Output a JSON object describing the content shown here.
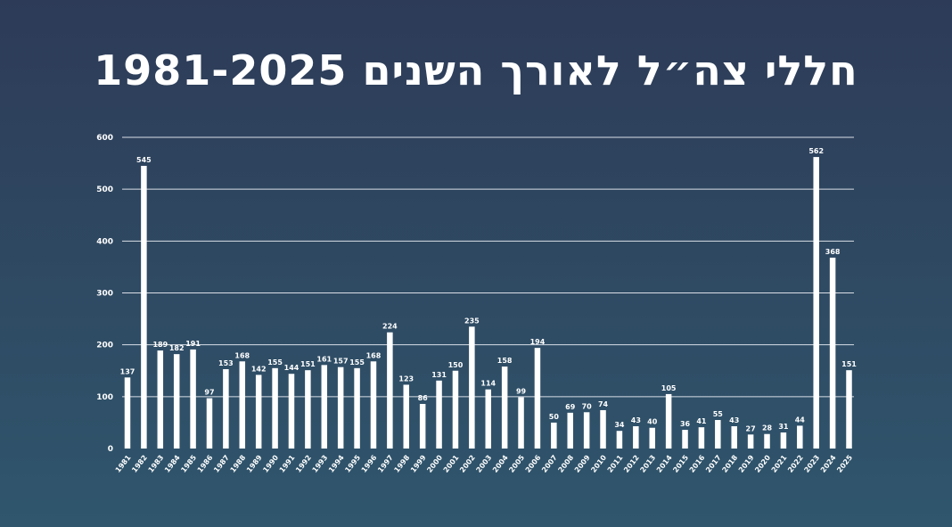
{
  "chart_data": {
    "type": "bar",
    "title": "חללי צה״ל לאורך השנים 1981-2025",
    "xlabel": "",
    "ylabel": "",
    "ylim": [
      0,
      600
    ],
    "yticks": [
      0,
      100,
      200,
      300,
      400,
      500,
      600
    ],
    "grid": true,
    "legend": "none",
    "bar_color": "#ffffff",
    "grid_color": "#d9dee6",
    "categories": [
      "1981",
      "1982",
      "1983",
      "1984",
      "1985",
      "1986",
      "1987",
      "1988",
      "1989",
      "1990",
      "1991",
      "1992",
      "1993",
      "1994",
      "1995",
      "1996",
      "1997",
      "1998",
      "1999",
      "2000",
      "2001",
      "2002",
      "2003",
      "2004",
      "2005",
      "2006",
      "2007",
      "2008",
      "2009",
      "2010",
      "2011",
      "2012",
      "2013",
      "2014",
      "2015",
      "2016",
      "2017",
      "2018",
      "2019",
      "2020",
      "2021",
      "2022",
      "2023",
      "2024",
      "2025"
    ],
    "values": [
      137,
      545,
      189,
      182,
      191,
      97,
      153,
      168,
      142,
      155,
      144,
      151,
      161,
      157,
      155,
      168,
      224,
      123,
      86,
      131,
      150,
      235,
      114,
      158,
      99,
      194,
      50,
      69,
      70,
      74,
      34,
      43,
      40,
      105,
      36,
      41,
      55,
      43,
      27,
      28,
      31,
      44,
      562,
      368,
      151
    ]
  }
}
